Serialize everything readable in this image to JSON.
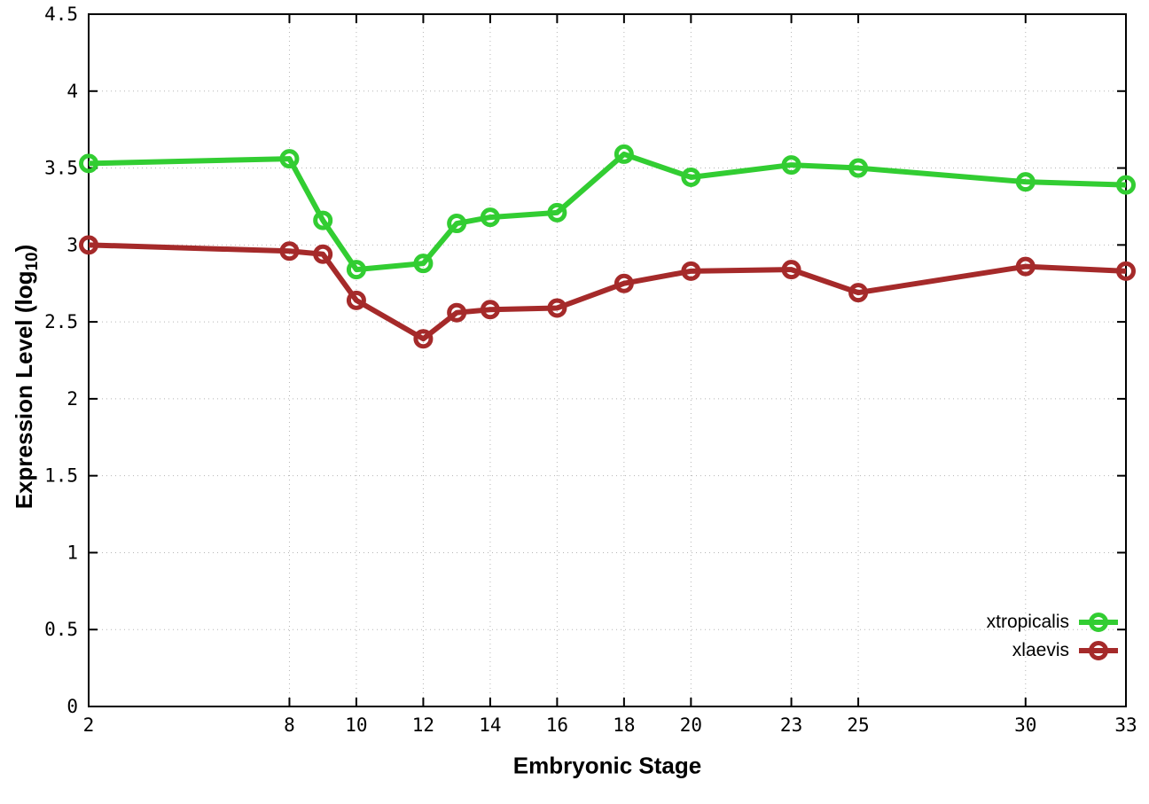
{
  "chart_data": {
    "type": "line",
    "x": [
      2,
      8,
      9,
      10,
      12,
      13,
      14,
      16,
      18,
      20,
      23,
      25,
      30,
      33
    ],
    "series": [
      {
        "name": "xtropicalis",
        "color": "#32CD32",
        "marker": "open-circle",
        "values": [
          3.53,
          3.56,
          3.16,
          2.84,
          2.88,
          3.14,
          3.18,
          3.21,
          3.59,
          3.44,
          3.52,
          3.5,
          3.41,
          3.39
        ]
      },
      {
        "name": "xlaevis",
        "color": "#A52A2A",
        "marker": "open-circle",
        "values": [
          3.0,
          2.96,
          2.94,
          2.64,
          2.39,
          2.56,
          2.58,
          2.59,
          2.75,
          2.83,
          2.84,
          2.69,
          2.86,
          2.83
        ]
      }
    ],
    "xlabel": "Embryonic Stage",
    "ylabel": "Expression Level (log10)",
    "ylabel_parts": {
      "pre": "Expression Level (log",
      "sub": "10",
      "post": ")"
    },
    "xticks": [
      2,
      8,
      10,
      12,
      14,
      16,
      18,
      20,
      23,
      25,
      30,
      33
    ],
    "yticks": [
      0,
      0.5,
      1,
      1.5,
      2,
      2.5,
      3,
      3.5,
      4,
      4.5
    ],
    "xlim": [
      2,
      33
    ],
    "ylim": [
      0,
      4.5
    ],
    "grid": true,
    "grid_style": "dotted",
    "legend_position": "inside-bottom-right",
    "background": "#ffffff",
    "axis_color": "#000000"
  }
}
